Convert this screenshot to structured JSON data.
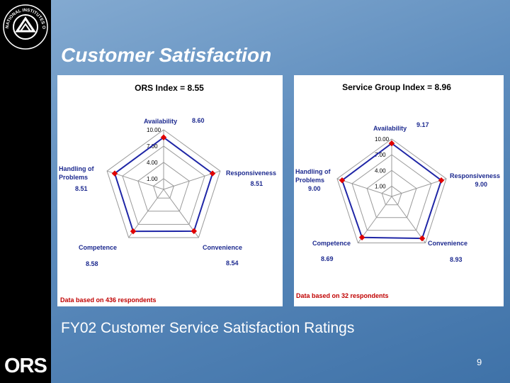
{
  "slide": {
    "title": "Customer Satisfaction",
    "caption": "FY02 Customer Service Satisfaction Ratings",
    "page_number": "9",
    "logo_text": "ORS",
    "seal_text": "NATIONAL INSTITUTES OF HEALTH"
  },
  "colors": {
    "data_line": "#1f26a6",
    "marker": "#e00000",
    "grid": "#9a9a9a",
    "label_text": "#1d2a8f",
    "note_text": "#c00000"
  },
  "chart_data": [
    {
      "type": "radar",
      "title": "ORS Index = 8.55",
      "axes": [
        "Availability",
        "Responsiveness",
        "Convenience",
        "Competence",
        "Handling of Problems"
      ],
      "values": [
        8.6,
        8.51,
        8.54,
        8.58,
        8.51
      ],
      "value_labels": [
        "8.60",
        "8.51",
        "8.54",
        "8.58",
        "8.51"
      ],
      "rlim": [
        1,
        10
      ],
      "ticks": [
        "1.00",
        "4.00",
        "7.00",
        "10.00"
      ],
      "note": "Data based on 436 respondents"
    },
    {
      "type": "radar",
      "title": "Service Group Index = 8.96",
      "axes": [
        "Availability",
        "Responsiveness",
        "Convenience",
        "Competence",
        "Handling of Problems"
      ],
      "values": [
        9.17,
        9.0,
        8.93,
        8.69,
        9.0
      ],
      "value_labels": [
        "9.17",
        "9.00",
        "8.93",
        "8.69",
        "9.00"
      ],
      "rlim": [
        1,
        10
      ],
      "ticks": [
        "1.00",
        "4.00",
        "7.00",
        "10.00"
      ],
      "note": "Data based on 32  respondents"
    }
  ]
}
